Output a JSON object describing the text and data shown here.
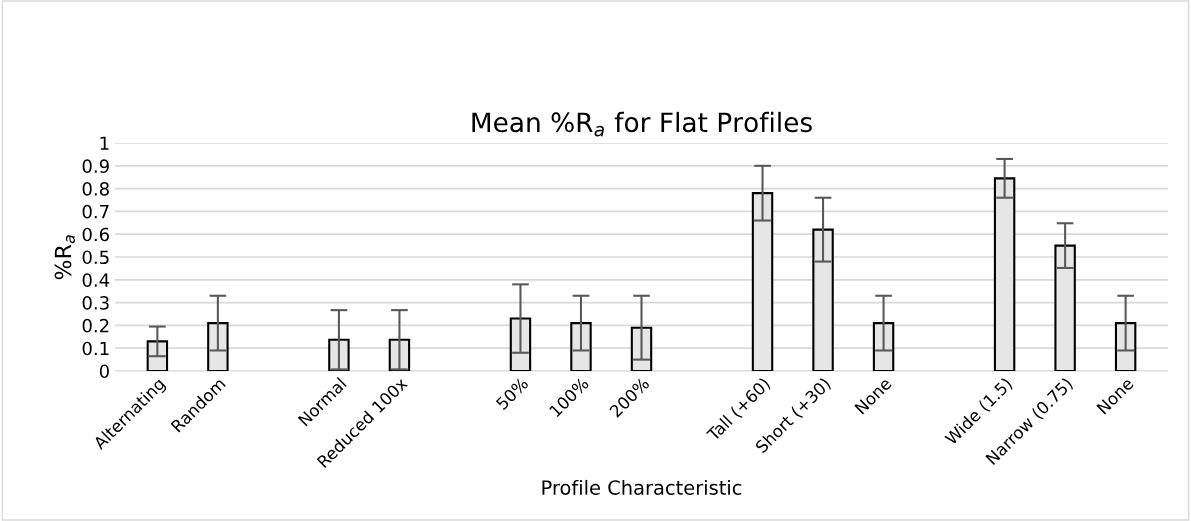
{
  "chart_data": {
    "type": "bar",
    "title": "Mean %R$_{a}$ for Flat Profiles",
    "xlabel": "Profile Characteristic",
    "ylabel": "%R$_{a}$",
    "categories": [
      "Alternating",
      "Random",
      null,
      "Normal",
      "Reduced 100x",
      null,
      "50%",
      "100%",
      "200%",
      null,
      "Tall (+60)",
      "Short (+30)",
      "None",
      null,
      "Wide (1.5)",
      "Narrow (0.75)",
      "None"
    ],
    "values": [
      0.13,
      0.21,
      null,
      0.137,
      0.137,
      null,
      0.23,
      0.21,
      0.19,
      null,
      0.78,
      0.62,
      0.21,
      null,
      0.845,
      0.55,
      0.21
    ],
    "errors": [
      0.065,
      0.12,
      null,
      0.13,
      0.13,
      null,
      0.15,
      0.12,
      0.14,
      null,
      0.12,
      0.14,
      0.12,
      null,
      0.085,
      0.098,
      0.12
    ],
    "color": "#e6e6e6",
    "ylim": [
      0,
      1
    ],
    "yticks": [
      0,
      0.1,
      0.2,
      0.3,
      0.4,
      0.5,
      0.6,
      0.7,
      0.8,
      0.9,
      1
    ],
    "grid": "y"
  }
}
